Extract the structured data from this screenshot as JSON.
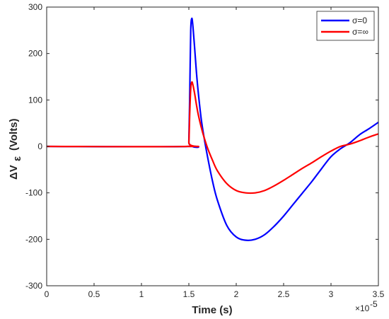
{
  "chart_data": {
    "type": "line",
    "xlabel": "Time  (s)",
    "ylabel_delta": "ΔV",
    "ylabel_sub": "ε",
    "ylabel_units": "(Volts)",
    "x_exponent_base": "×10",
    "x_exponent_power": "-5",
    "xlim": [
      0,
      3.5
    ],
    "ylim": [
      -300,
      300
    ],
    "x_unit_scale": 1e-05,
    "xticks": [
      0,
      0.5,
      1,
      1.5,
      2,
      2.5,
      3,
      3.5
    ],
    "xtick_labels": [
      "0",
      "0.5",
      "1",
      "1.5",
      "2",
      "2.5",
      "3",
      "3.5"
    ],
    "yticks": [
      300,
      200,
      100,
      0,
      -100,
      -200,
      -300
    ],
    "ytick_labels": [
      "300",
      "200",
      "100",
      "0",
      "-100",
      "-200",
      "-300"
    ],
    "grid": false,
    "legend_placement": "top-right",
    "series": [
      {
        "name": "σ=0",
        "color": "#0000ff",
        "x": [
          0,
          1.49,
          1.5,
          1.51,
          1.52,
          1.53,
          1.54,
          1.56,
          1.58,
          1.6,
          1.63,
          1.66,
          1.7,
          1.75,
          1.8,
          1.9,
          2.0,
          2.1,
          2.2,
          2.3,
          2.4,
          2.5,
          2.6,
          2.7,
          2.8,
          2.9,
          3.0,
          3.1,
          3.2,
          3.3,
          3.4,
          3.5
        ],
        "y": [
          0,
          0,
          10,
          120,
          250,
          275,
          265,
          215,
          160,
          115,
          60,
          20,
          -25,
          -75,
          -115,
          -170,
          -195,
          -202,
          -200,
          -190,
          -172,
          -150,
          -125,
          -100,
          -75,
          -48,
          -22,
          -5,
          8,
          25,
          38,
          52
        ]
      },
      {
        "name": "σ=∞",
        "color": "#ff0000",
        "x": [
          0,
          1.49,
          1.5,
          1.51,
          1.52,
          1.53,
          1.54,
          1.56,
          1.58,
          1.6,
          1.63,
          1.66,
          1.7,
          1.75,
          1.8,
          1.9,
          2.0,
          2.1,
          2.2,
          2.3,
          2.4,
          2.5,
          2.6,
          2.7,
          2.8,
          2.9,
          3.0,
          3.1,
          3.2,
          3.3,
          3.4,
          3.5
        ],
        "y": [
          0,
          0,
          8,
          75,
          125,
          138,
          135,
          115,
          90,
          68,
          42,
          20,
          -5,
          -30,
          -52,
          -80,
          -95,
          -100,
          -100,
          -95,
          -85,
          -73,
          -60,
          -47,
          -35,
          -22,
          -10,
          0,
          5,
          12,
          20,
          27
        ]
      }
    ]
  }
}
